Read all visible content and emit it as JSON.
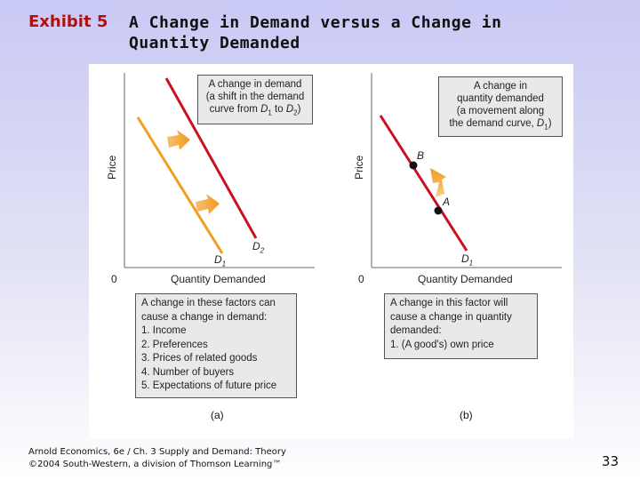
{
  "title": {
    "label": "Exhibit 5",
    "text": "A Change in Demand versus a Change in Quantity Demanded"
  },
  "panel_a": {
    "y_label": "Price",
    "x_label": "Quantity Demanded",
    "origin": "0",
    "curve_d1": "D",
    "curve_d1_sub": "1",
    "curve_d2": "D",
    "curve_d2_sub": "2",
    "top_box": [
      "A change in demand",
      "(a shift in the demand"
    ],
    "top_box_line3": {
      "pre": "curve from ",
      "d1": "D",
      "d1_sub": "1",
      "mid": " to ",
      "d2": "D",
      "d2_sub": "2",
      "post": ")"
    },
    "bottom_box": [
      "A change in these factors can",
      "cause a change in demand:",
      "1. Income",
      "2. Preferences",
      "3. Prices of related goods",
      "4. Number of buyers",
      "5. Expectations of future price"
    ],
    "caption": "(a)",
    "d1_color": "#f0a020",
    "d2_color": "#cc1020"
  },
  "panel_b": {
    "y_label": "Price",
    "x_label": "Quantity Demanded",
    "origin": "0",
    "curve_d1": "D",
    "curve_d1_sub": "1",
    "point_a": "A",
    "point_b": "B",
    "top_box": [
      "A change in",
      "quantity demanded",
      "(a movement along"
    ],
    "top_box_line4": {
      "pre": "the demand curve, ",
      "d": "D",
      "d_sub": "1",
      "post": ")"
    },
    "bottom_box": [
      "A change in this factor will",
      "cause a change in quantity",
      "demanded:",
      "1. (A good's) own price"
    ],
    "caption": "(b)",
    "curve_color": "#cc1020"
  },
  "footer": {
    "line1": "Arnold Economics, 6e / Ch. 3 Supply and Demand: Theory",
    "line2": "©2004 South-Western, a division of Thomson Learning™"
  },
  "page_number": "33"
}
